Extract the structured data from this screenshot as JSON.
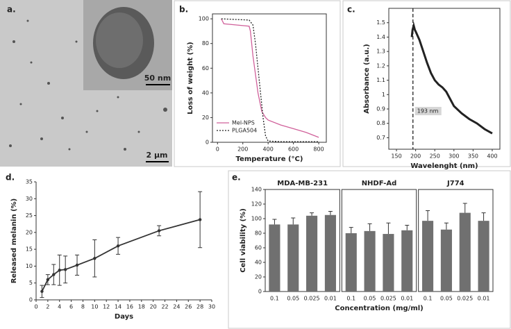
{
  "image_panel": {
    "label": "a.",
    "inset_scale": "50 nm",
    "scale": "2 µm"
  },
  "chart_data": [
    {
      "type": "line",
      "label": "b.",
      "xlabel": "Temperature (°C)",
      "ylabel": "Loss of weight (%)",
      "xlim": [
        -40,
        860
      ],
      "ylim": [
        0,
        104
      ],
      "xticks": [
        0,
        200,
        400,
        600,
        800
      ],
      "yticks": [
        0,
        20,
        40,
        60,
        80,
        100
      ],
      "legend": "lower left",
      "series": [
        {
          "name": "Mel-NPS",
          "color": "#d0609a",
          "dash": "solid",
          "x": [
            30,
            50,
            150,
            250,
            260,
            280,
            320,
            350,
            380,
            400,
            500,
            600,
            700,
            800
          ],
          "values": [
            100,
            96,
            95,
            94,
            90,
            70,
            40,
            25,
            20,
            18,
            14,
            11,
            8,
            4
          ]
        },
        {
          "name": "PLGA504",
          "color": "#222222",
          "dash": "dotted",
          "x": [
            30,
            250,
            280,
            300,
            320,
            340,
            360,
            380,
            400,
            500,
            800
          ],
          "values": [
            100,
            99,
            95,
            80,
            60,
            40,
            20,
            5,
            1,
            0.5,
            0.5
          ]
        }
      ]
    },
    {
      "type": "line",
      "label": "c.",
      "xlabel": "Wavelenght (nm)",
      "ylabel": "Absorbance (a.u.)",
      "xlim": [
        130,
        420
      ],
      "ylim": [
        0.62,
        1.6
      ],
      "xticks": [
        150,
        200,
        250,
        300,
        350,
        400
      ],
      "yticks": [
        0.7,
        0.8,
        0.9,
        1,
        1.1,
        1.2,
        1.3,
        1.4,
        1.5
      ],
      "marker_x": 193,
      "annotation": "193 nm",
      "series": [
        {
          "color": "#222222",
          "dash": "solid",
          "x": [
            190,
            192,
            195,
            198,
            200,
            210,
            220,
            230,
            240,
            250,
            260,
            270,
            280,
            290,
            300,
            320,
            340,
            360,
            380,
            400
          ],
          "values": [
            1.4,
            1.45,
            1.48,
            1.45,
            1.44,
            1.38,
            1.3,
            1.22,
            1.15,
            1.1,
            1.07,
            1.05,
            1.02,
            0.97,
            0.92,
            0.87,
            0.83,
            0.8,
            0.76,
            0.73
          ]
        }
      ]
    },
    {
      "type": "errorline",
      "label": "d.",
      "xlabel": "Days",
      "ylabel": "Released melanin (%)",
      "xlim": [
        0,
        30
      ],
      "ylim": [
        0,
        35
      ],
      "xticks": [
        0,
        2,
        4,
        6,
        8,
        10,
        12,
        14,
        16,
        18,
        20,
        22,
        24,
        26,
        28,
        30
      ],
      "yticks": [
        0,
        5,
        10,
        15,
        20,
        25,
        30,
        35
      ],
      "color": "#333333",
      "x": [
        1,
        2,
        3,
        4,
        5,
        7,
        10,
        14,
        21,
        28
      ],
      "values": [
        2.5,
        6,
        7.5,
        8.8,
        9,
        10.3,
        12.3,
        16,
        20.5,
        23.8
      ],
      "errors": [
        1.8,
        1.5,
        3,
        4.5,
        4,
        3,
        5.5,
        2.5,
        1.5,
        8.3
      ]
    },
    {
      "type": "bar",
      "label": "e.",
      "xlabel": "Concentration (mg/ml)",
      "ylabel": "Cell viability (%)",
      "ylim": [
        0,
        140
      ],
      "yticks": [
        0,
        20,
        40,
        60,
        80,
        100,
        120,
        140
      ],
      "color": "#707070",
      "categories": [
        "0.1",
        "0.05",
        "0.025",
        "0.01"
      ],
      "panels": [
        {
          "title": "MDA-MB-231",
          "values": [
            92,
            92,
            104,
            105
          ],
          "errors": [
            7,
            9,
            4,
            5
          ]
        },
        {
          "title": "NHDF-Ad",
          "values": [
            80,
            83,
            79,
            84
          ],
          "errors": [
            8,
            10,
            15,
            7
          ]
        },
        {
          "title": "J774",
          "values": [
            97,
            85,
            108,
            97
          ],
          "errors": [
            14,
            9,
            13,
            11
          ]
        }
      ]
    }
  ]
}
